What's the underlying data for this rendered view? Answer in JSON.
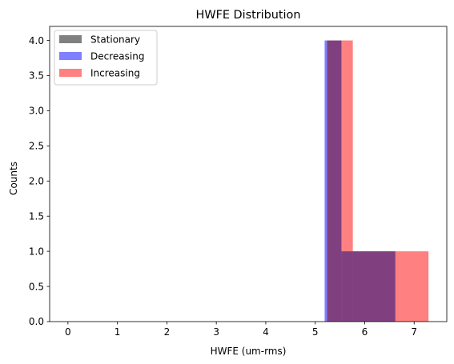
{
  "chart_data": {
    "type": "bar",
    "subtype": "histogram",
    "title": "HWFE Distribution",
    "xlabel": "HWFE (um-rms)",
    "ylabel": "Counts",
    "xlim": [
      -0.37,
      7.66
    ],
    "ylim": [
      0,
      4.2
    ],
    "xticks": [
      0,
      1,
      2,
      3,
      4,
      5,
      6,
      7
    ],
    "yticks": [
      0.0,
      0.5,
      1.0,
      1.5,
      2.0,
      2.5,
      3.0,
      3.5,
      4.0
    ],
    "xtick_labels": [
      "0",
      "1",
      "2",
      "3",
      "4",
      "5",
      "6",
      "7"
    ],
    "ytick_labels": [
      "0.0",
      "0.5",
      "1.0",
      "1.5",
      "2.0",
      "2.5",
      "3.0",
      "3.5",
      "4.0"
    ],
    "grid": false,
    "legend_position": "top-left",
    "series": [
      {
        "name": "Stationary",
        "color": "#808080",
        "bins": []
      },
      {
        "name": "Decreasing",
        "color": "#8080ff",
        "bins": [
          {
            "x0": 5.19,
            "x1": 5.53,
            "count": 4
          },
          {
            "x0": 5.53,
            "x1": 6.62,
            "count": 1
          }
        ]
      },
      {
        "name": "Increasing",
        "color": "#ff8080",
        "bins": [
          {
            "x0": 5.24,
            "x1": 5.55,
            "count": 4
          },
          {
            "x0": 5.55,
            "x1": 5.76,
            "count": 4
          },
          {
            "x0": 5.76,
            "x1": 6.62,
            "count": 1
          },
          {
            "x0": 6.62,
            "x1": 7.29,
            "count": 1
          }
        ]
      }
    ]
  }
}
